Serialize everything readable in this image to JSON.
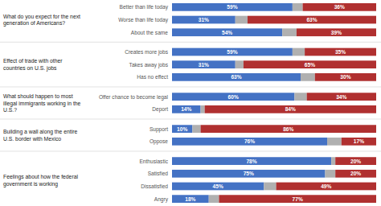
{
  "chart_data": [
    {
      "type": "bar",
      "orientation": "horizontal",
      "stacked": true,
      "data_labels": true,
      "tick_labels": false,
      "grid": false,
      "title": "What do you expect for the next\ngeneration of Americans?",
      "categories": [
        "Better than life today",
        "Worse than life today",
        "About the same"
      ],
      "xlim": [
        0,
        100
      ],
      "series": [
        {
          "color": "#4472C4",
          "values": [
            59,
            31,
            54
          ],
          "value_labels": [
            "59%",
            "31%",
            "54%"
          ]
        },
        {
          "color": "#B0B0B0",
          "values": [
            5,
            6,
            7
          ]
        },
        {
          "color": "#B03030",
          "values": [
            36,
            63,
            39
          ],
          "value_labels": [
            "36%",
            "63%",
            "39%"
          ]
        }
      ]
    },
    {
      "type": "bar",
      "orientation": "horizontal",
      "stacked": true,
      "data_labels": true,
      "tick_labels": false,
      "grid": false,
      "title": "Effect of trade with other\ncountries on U.S. jobs",
      "categories": [
        "Creates more jobs",
        "Takes away jobs",
        "Has no effect"
      ],
      "xlim": [
        0,
        100
      ],
      "series": [
        {
          "color": "#4472C4",
          "values": [
            59,
            31,
            63
          ],
          "value_labels": [
            "59%",
            "31%",
            "63%"
          ]
        },
        {
          "color": "#B0B0B0",
          "values": [
            6,
            4,
            7
          ]
        },
        {
          "color": "#B03030",
          "values": [
            35,
            65,
            30
          ],
          "value_labels": [
            "35%",
            "65%",
            "30%"
          ]
        }
      ]
    },
    {
      "type": "bar",
      "orientation": "horizontal",
      "stacked": true,
      "data_labels": true,
      "tick_labels": false,
      "grid": false,
      "title": "What should happen to most\nillegal immigrants working in the\nU.S.?",
      "categories": [
        "Offer chance to become legal",
        "Deport"
      ],
      "xlim": [
        0,
        100
      ],
      "series": [
        {
          "color": "#4472C4",
          "values": [
            60,
            14
          ],
          "value_labels": [
            "60%",
            "14%"
          ]
        },
        {
          "color": "#B0B0B0",
          "values": [
            6,
            2
          ]
        },
        {
          "color": "#B03030",
          "values": [
            34,
            84
          ],
          "value_labels": [
            "34%",
            "84%"
          ]
        }
      ]
    },
    {
      "type": "bar",
      "orientation": "horizontal",
      "stacked": true,
      "data_labels": true,
      "tick_labels": false,
      "grid": false,
      "title": "Building a wall along the entire\nU.S. border with Mexico",
      "categories": [
        "Support",
        "Oppose"
      ],
      "xlim": [
        0,
        100
      ],
      "series": [
        {
          "color": "#4472C4",
          "values": [
            10,
            76
          ],
          "value_labels": [
            "10%",
            "76%"
          ]
        },
        {
          "color": "#B0B0B0",
          "values": [
            4,
            7
          ]
        },
        {
          "color": "#B03030",
          "values": [
            86,
            17
          ],
          "value_labels": [
            "86%",
            "17%"
          ]
        }
      ]
    },
    {
      "type": "bar",
      "orientation": "horizontal",
      "stacked": true,
      "data_labels": true,
      "tick_labels": false,
      "grid": false,
      "title": "Feelings about how the federal\ngovernment is working",
      "categories": [
        "Enthusiastic",
        "Satisfied",
        "Dissatisfied",
        "Angry"
      ],
      "xlim": [
        0,
        100
      ],
      "series": [
        {
          "color": "#4472C4",
          "values": [
            78,
            75,
            45,
            18
          ],
          "value_labels": [
            "78%",
            "75%",
            "45%",
            "18%"
          ]
        },
        {
          "color": "#B0B0B0",
          "values": [
            2,
            5,
            6,
            5
          ]
        },
        {
          "color": "#B03030",
          "values": [
            20,
            20,
            49,
            77
          ],
          "value_labels": [
            "20%",
            "20%",
            "49%",
            "77%"
          ]
        }
      ]
    }
  ]
}
